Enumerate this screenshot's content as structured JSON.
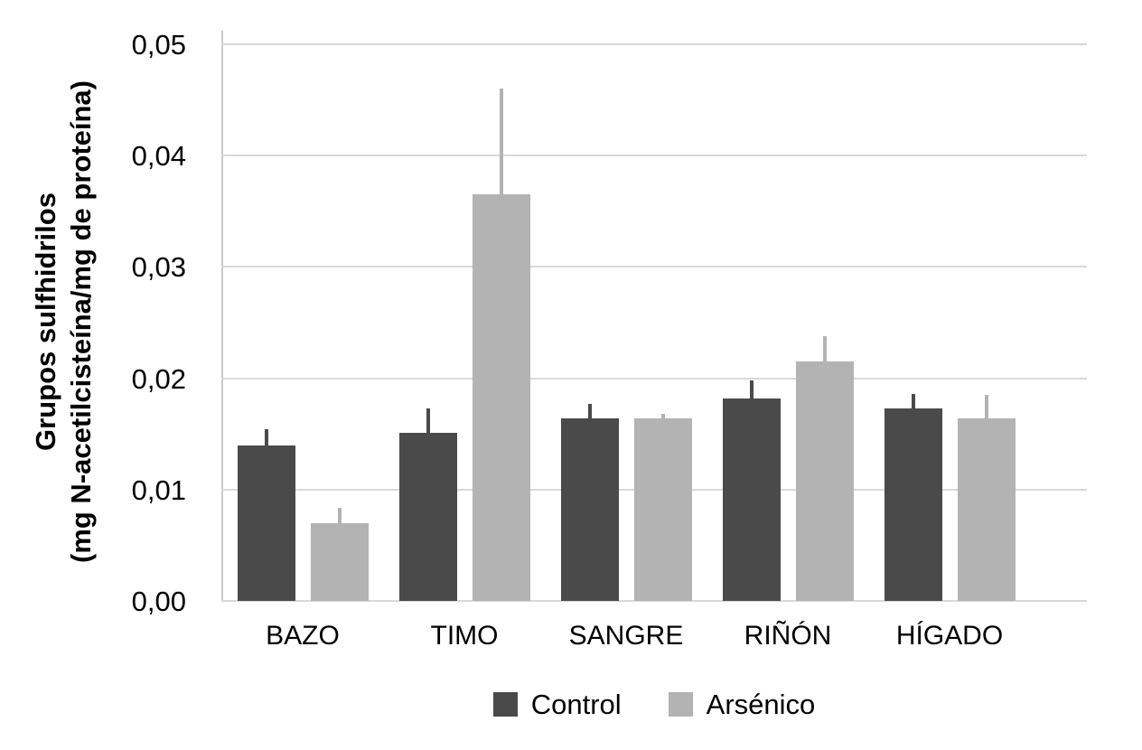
{
  "chart_data": {
    "type": "bar",
    "title": "",
    "categories": [
      "BAZO",
      "TIMO",
      "SANGRE",
      "RIÑÓN",
      "HÍGADO"
    ],
    "series": [
      {
        "name": "Control",
        "color": "#4a4a4a",
        "values": [
          0.014,
          0.0151,
          0.0164,
          0.0182,
          0.0173
        ],
        "errors_plus": [
          0.0014,
          0.0022,
          0.0013,
          0.0016,
          0.0013
        ]
      },
      {
        "name": "Arsénico",
        "color": "#b3b3b3",
        "values": [
          0.007,
          0.0365,
          0.0164,
          0.0215,
          0.0164
        ],
        "errors_plus": [
          0.0014,
          0.0095,
          0.0004,
          0.0023,
          0.0021
        ]
      }
    ],
    "ylabel_line1": "Grupos sulfhidrilos",
    "ylabel_line2": "(mg N-acetilcisteína/mg de proteína)",
    "xlabel": "",
    "ylim": [
      0,
      0.05
    ],
    "ytick_step": 0.01,
    "ytick_labels": [
      "0,00",
      "0,01",
      "0,02",
      "0,03",
      "0,04",
      "0,05"
    ],
    "grid": true,
    "legend_position": "bottom",
    "error_bars": "upper-only, no caps"
  },
  "colors": {
    "background": "#ffffff",
    "gridline": "#d9d9d9",
    "axis_line": "#c9c9c9",
    "text": "#000000",
    "control_bar": "#4a4a4a",
    "arsenico_bar": "#b3b3b3"
  }
}
